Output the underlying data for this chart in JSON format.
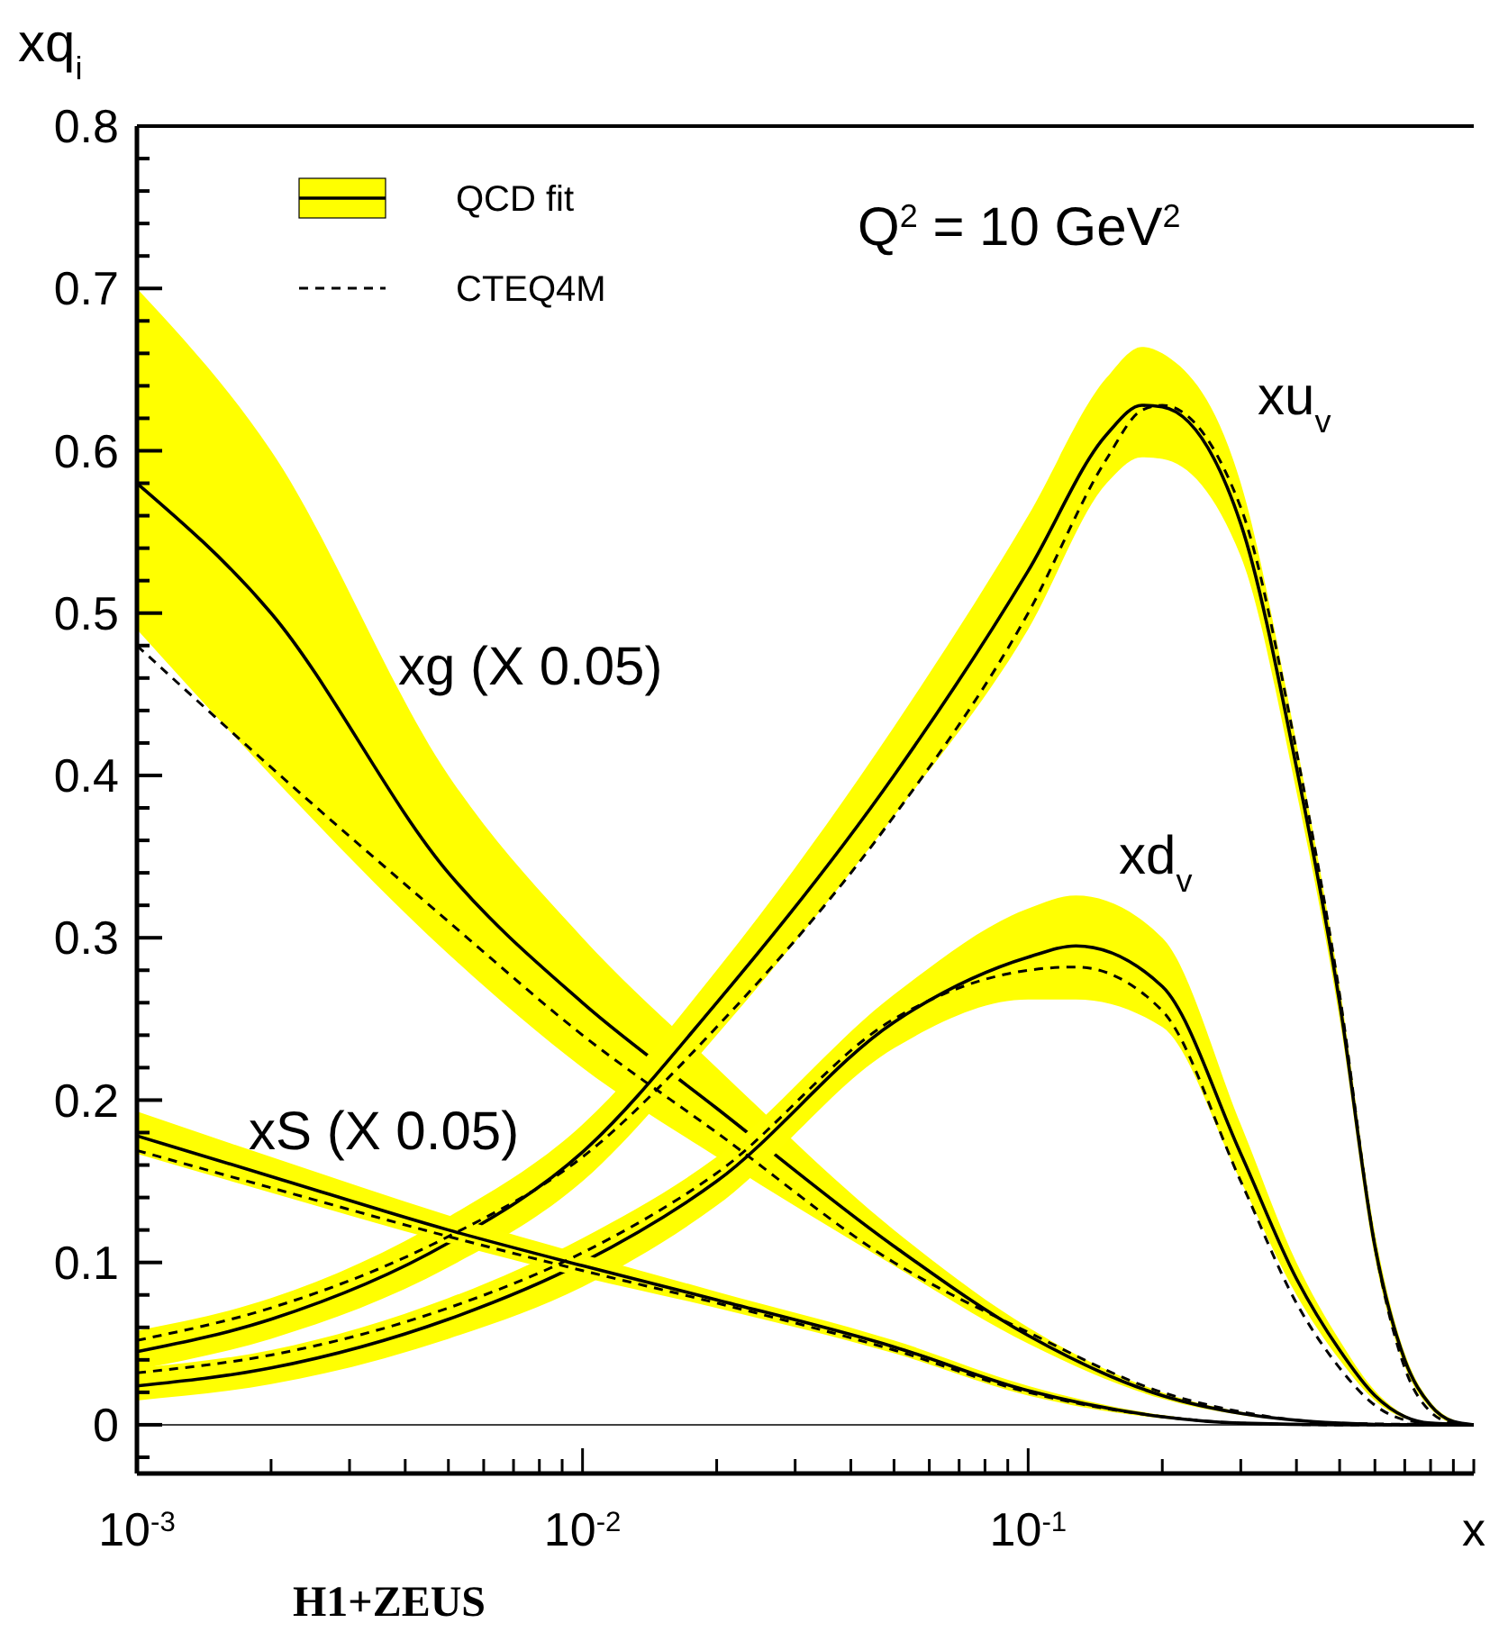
{
  "chart_data": {
    "type": "line",
    "xlabel": "x",
    "ylabel": "xq$_{i}$",
    "log": "x",
    "legend": "top left",
    "xlim": [
      0.001,
      1
    ],
    "ylim": [
      -0.03,
      0.8
    ],
    "xticks": [
      {
        "value": 0.001,
        "label": "10$^{-3}$"
      },
      {
        "value": 0.002,
        "label": null
      },
      {
        "value": 0.003,
        "label": null
      },
      {
        "value": 0.004,
        "label": null
      },
      {
        "value": 0.005,
        "label": null
      },
      {
        "value": 0.006,
        "label": null
      },
      {
        "value": 0.007,
        "label": null
      },
      {
        "value": 0.008,
        "label": null
      },
      {
        "value": 0.009,
        "label": null
      },
      {
        "value": 0.01,
        "label": "10$^{-2}$"
      },
      {
        "value": 0.02,
        "label": null
      },
      {
        "value": 0.03,
        "label": null
      },
      {
        "value": 0.04,
        "label": null
      },
      {
        "value": 0.05,
        "label": null
      },
      {
        "value": 0.06,
        "label": null
      },
      {
        "value": 0.07,
        "label": null
      },
      {
        "value": 0.08,
        "label": null
      },
      {
        "value": 0.09,
        "label": null
      },
      {
        "value": 0.1,
        "label": "10$^{-1}$"
      },
      {
        "value": 0.2,
        "label": null
      },
      {
        "value": 0.3,
        "label": null
      },
      {
        "value": 0.4,
        "label": null
      },
      {
        "value": 0.5,
        "label": null
      },
      {
        "value": 0.6,
        "label": null
      },
      {
        "value": 0.7,
        "label": null
      },
      {
        "value": 0.8,
        "label": null
      },
      {
        "value": 0.9,
        "label": null
      },
      {
        "value": 1,
        "label": null
      }
    ],
    "yticks": [
      {
        "value": -0.02,
        "label": null
      },
      0,
      {
        "value": 0.02,
        "label": null
      },
      {
        "value": 0.04,
        "label": null
      },
      {
        "value": 0.06,
        "label": null
      },
      {
        "value": 0.08,
        "label": null
      },
      0.1,
      {
        "value": 0.12,
        "label": null
      },
      {
        "value": 0.14,
        "label": null
      },
      {
        "value": 0.16,
        "label": null
      },
      {
        "value": 0.18,
        "label": null
      },
      0.2,
      {
        "value": 0.22,
        "label": null
      },
      {
        "value": 0.24,
        "label": null
      },
      {
        "value": 0.26,
        "label": null
      },
      {
        "value": 0.28,
        "label": null
      },
      0.3,
      {
        "value": 0.32,
        "label": null
      },
      {
        "value": 0.34,
        "label": null
      },
      {
        "value": 0.36,
        "label": null
      },
      {
        "value": 0.38,
        "label": null
      },
      0.4,
      {
        "value": 0.42,
        "label": null
      },
      {
        "value": 0.44,
        "label": null
      },
      {
        "value": 0.46,
        "label": null
      },
      {
        "value": 0.48,
        "label": null
      },
      0.5,
      {
        "value": 0.52,
        "label": null
      },
      {
        "value": 0.54,
        "label": null
      },
      {
        "value": 0.56,
        "label": null
      },
      {
        "value": 0.58,
        "label": null
      },
      0.6,
      {
        "value": 0.62,
        "label": null
      },
      {
        "value": 0.64,
        "label": null
      },
      {
        "value": 0.66,
        "label": null
      },
      {
        "value": 0.68,
        "label": null
      },
      0.7,
      {
        "value": 0.72,
        "label": null
      },
      {
        "value": 0.74,
        "label": null
      },
      {
        "value": 0.76,
        "label": null
      },
      {
        "value": 0.78,
        "label": null
      },
      0.8
    ],
    "ref_lines": [
      {
        "axis": "y",
        "value": 0,
        "color": "#000000"
      }
    ],
    "series": [
      {
        "name": "QCD fit",
        "color": "#000000",
        "line_style": "solid",
        "x": [
          0.001,
          0.002,
          0.005,
          0.01,
          0.02,
          0.05,
          0.1,
          0.2,
          0.3,
          0.5,
          0.7,
          1
        ],
        "values": [
          0.58,
          0.5,
          0.34,
          0.26,
          0.195,
          0.11,
          0.055,
          0.018,
          0.007,
          0.001,
          0,
          0
        ],
        "upper": [
          0.7,
          0.6,
          0.4,
          0.3,
          0.22,
          0.12,
          0.06,
          0.02,
          0.008,
          0.001,
          0,
          0
        ],
        "lower": [
          0.49,
          0.4,
          0.29,
          0.22,
          0.165,
          0.098,
          0.05,
          0.016,
          0.006,
          0.001,
          0,
          0
        ]
      },
      {
        "color": "#000000",
        "line_style": "solid",
        "x": [
          0.001,
          0.002,
          0.005,
          0.01,
          0.02,
          0.05,
          0.1,
          0.15,
          0.18,
          0.2,
          0.3,
          0.4,
          0.5,
          0.6,
          0.7,
          0.8,
          0.9,
          1
        ],
        "values": [
          0.045,
          0.065,
          0.112,
          0.168,
          0.26,
          0.4,
          0.526,
          0.61,
          0.628,
          0.627,
          0.555,
          0.405,
          0.26,
          0.11,
          0.04,
          0.012,
          0.002,
          0
        ],
        "upper": [
          0.058,
          0.078,
          0.128,
          0.185,
          0.28,
          0.43,
          0.56,
          0.645,
          0.664,
          0.66,
          0.58,
          0.42,
          0.27,
          0.118,
          0.044,
          0.014,
          0.003,
          0
        ],
        "lower": [
          0.034,
          0.053,
          0.097,
          0.15,
          0.24,
          0.375,
          0.49,
          0.58,
          0.596,
          0.595,
          0.535,
          0.39,
          0.25,
          0.103,
          0.036,
          0.01,
          0.001,
          0
        ]
      },
      {
        "color": "#000000",
        "line_style": "solid",
        "x": [
          0.001,
          0.002,
          0.005,
          0.01,
          0.02,
          0.05,
          0.1,
          0.128,
          0.2,
          0.3,
          0.4,
          0.5,
          0.6,
          0.7,
          0.8,
          1
        ],
        "values": [
          0.024,
          0.035,
          0.065,
          0.1,
          0.15,
          0.248,
          0.288,
          0.295,
          0.27,
          0.167,
          0.09,
          0.046,
          0.018,
          0.005,
          0.001,
          0
        ],
        "upper": [
          0.035,
          0.046,
          0.078,
          0.115,
          0.165,
          0.265,
          0.318,
          0.326,
          0.3,
          0.185,
          0.1,
          0.052,
          0.021,
          0.006,
          0.001,
          0
        ],
        "lower": [
          0.015,
          0.025,
          0.053,
          0.085,
          0.135,
          0.232,
          0.262,
          0.262,
          0.245,
          0.15,
          0.08,
          0.04,
          0.015,
          0.004,
          0.001,
          0
        ]
      },
      {
        "color": "#000000",
        "line_style": "solid",
        "x": [
          0.001,
          0.002,
          0.005,
          0.01,
          0.02,
          0.05,
          0.1,
          0.2,
          0.3,
          0.5,
          1
        ],
        "values": [
          0.178,
          0.153,
          0.12,
          0.098,
          0.077,
          0.048,
          0.021,
          0.005,
          0.001,
          0,
          0
        ],
        "upper": [
          0.193,
          0.165,
          0.129,
          0.105,
          0.082,
          0.052,
          0.024,
          0.006,
          0.001,
          0,
          0
        ],
        "lower": [
          0.167,
          0.143,
          0.112,
          0.091,
          0.072,
          0.044,
          0.018,
          0.004,
          0.001,
          0,
          0
        ]
      },
      {
        "name": "CTEQ4M",
        "color": "#000000",
        "line_style": "dashed",
        "x": [
          0.001,
          0.002,
          0.005,
          0.01,
          0.02,
          0.05,
          0.1,
          0.2,
          0.3,
          0.5,
          1
        ],
        "values": [
          0.48,
          0.405,
          0.31,
          0.24,
          0.18,
          0.1,
          0.057,
          0.02,
          0.008,
          0.001,
          0
        ]
      },
      {
        "color": "#000000",
        "line_style": "dashed",
        "x": [
          0.001,
          0.002,
          0.005,
          0.01,
          0.02,
          0.05,
          0.1,
          0.15,
          0.18,
          0.2,
          0.3,
          0.4,
          0.5,
          0.6,
          0.7,
          0.8,
          0.9,
          1
        ],
        "values": [
          0.052,
          0.072,
          0.116,
          0.165,
          0.245,
          0.375,
          0.5,
          0.595,
          0.625,
          0.628,
          0.565,
          0.415,
          0.265,
          0.11,
          0.035,
          0.008,
          0.001,
          0
        ]
      },
      {
        "color": "#000000",
        "line_style": "dashed",
        "x": [
          0.001,
          0.002,
          0.005,
          0.01,
          0.02,
          0.05,
          0.1,
          0.128,
          0.2,
          0.3,
          0.4,
          0.5,
          0.6,
          0.7,
          0.8,
          1
        ],
        "values": [
          0.032,
          0.043,
          0.072,
          0.106,
          0.155,
          0.25,
          0.28,
          0.282,
          0.255,
          0.15,
          0.075,
          0.035,
          0.012,
          0.003,
          0.001,
          0
        ]
      },
      {
        "color": "#000000",
        "line_style": "dashed",
        "x": [
          0.001,
          0.002,
          0.005,
          0.01,
          0.02,
          0.05,
          0.1,
          0.2,
          0.3,
          0.5,
          1
        ],
        "values": [
          0.169,
          0.146,
          0.116,
          0.095,
          0.075,
          0.046,
          0.02,
          0.005,
          0.001,
          0,
          0
        ]
      }
    ],
    "annotations": [
      "Q$^{2}$ = 10 GeV$^{2}$",
      "H1+ZEUS",
      "xu$_{v}$",
      "xd$_{v}$",
      "xg (X 0.05)",
      "xS (X 0.05)"
    ]
  }
}
